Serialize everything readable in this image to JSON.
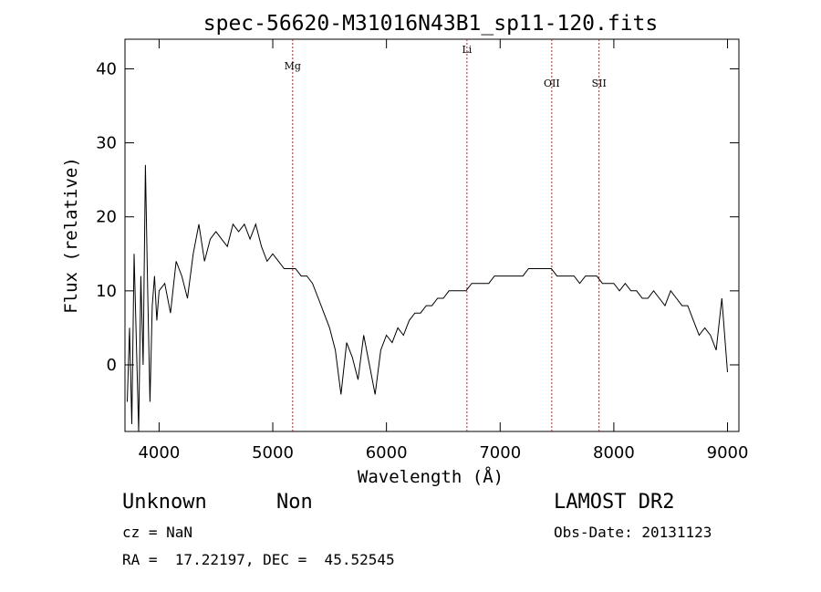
{
  "chart_data": {
    "type": "line",
    "title": "spec-56620-M31016N43B1_sp11-120.fits",
    "xlabel": "Wavelength (Å)",
    "ylabel": "Flux (relative)",
    "xlim": [
      3700,
      9100
    ],
    "ylim": [
      -9,
      44
    ],
    "xticks": [
      4000,
      5000,
      6000,
      7000,
      8000,
      9000
    ],
    "yticks": [
      0,
      10,
      20,
      30,
      40
    ],
    "grid": false,
    "line_color": "#000000",
    "marker_color": "#b22222",
    "lines": [
      {
        "label": "Mg",
        "x": 5175
      },
      {
        "label": "Li",
        "x": 6708
      },
      {
        "label": "OII",
        "x": 7454
      },
      {
        "label": "SII",
        "x": 7870
      }
    ],
    "series": [
      {
        "x": [
          3720,
          3740,
          3760,
          3780,
          3800,
          3820,
          3840,
          3860,
          3880,
          3900,
          3920,
          3940,
          3960,
          3980,
          4000,
          4050,
          4100,
          4150,
          4200,
          4250,
          4300,
          4350,
          4400,
          4450,
          4500,
          4550,
          4600,
          4650,
          4700,
          4750,
          4800,
          4850,
          4900,
          4950,
          5000,
          5050,
          5100,
          5150,
          5200,
          5250,
          5300,
          5350,
          5400,
          5450,
          5500,
          5550,
          5600,
          5650,
          5700,
          5750,
          5800,
          5850,
          5900,
          5950,
          6000,
          6050,
          6100,
          6150,
          6200,
          6250,
          6300,
          6350,
          6400,
          6450,
          6500,
          6550,
          6600,
          6650,
          6700,
          6750,
          6800,
          6850,
          6900,
          6950,
          7000,
          7050,
          7100,
          7150,
          7200,
          7250,
          7300,
          7350,
          7400,
          7450,
          7500,
          7550,
          7600,
          7650,
          7700,
          7750,
          7800,
          7850,
          7900,
          7950,
          8000,
          8050,
          8100,
          8150,
          8200,
          8250,
          8300,
          8350,
          8400,
          8450,
          8500,
          8550,
          8600,
          8650,
          8700,
          8750,
          8800,
          8850,
          8900,
          8950,
          8980,
          9000
        ],
        "y": [
          -5,
          5,
          -8,
          15,
          3,
          -9,
          12,
          0,
          27,
          10,
          -5,
          8,
          12,
          6,
          10,
          11,
          7,
          14,
          12,
          9,
          15,
          19,
          14,
          17,
          18,
          17,
          16,
          19,
          18,
          19,
          17,
          19,
          16,
          14,
          15,
          14,
          13,
          13,
          13,
          12,
          12,
          11,
          9,
          7,
          5,
          2,
          -4,
          3,
          1,
          -2,
          4,
          0,
          -4,
          2,
          4,
          3,
          5,
          4,
          6,
          7,
          7,
          8,
          8,
          9,
          9,
          10,
          10,
          10,
          10,
          11,
          11,
          11,
          11,
          12,
          12,
          12,
          12,
          12,
          12,
          13,
          13,
          13,
          13,
          13,
          12,
          12,
          12,
          12,
          11,
          12,
          12,
          12,
          11,
          11,
          11,
          10,
          11,
          10,
          10,
          9,
          9,
          10,
          9,
          8,
          10,
          9,
          8,
          8,
          6,
          4,
          5,
          4,
          2,
          9,
          3,
          -1
        ]
      }
    ]
  },
  "info": {
    "object_class": "Unknown",
    "subclass": "Non",
    "survey": "LAMOST DR2",
    "redshift": "cz = NaN",
    "obs_date": "Obs-Date: 20131123",
    "coords": "RA =  17.22197, DEC =  45.52545"
  }
}
